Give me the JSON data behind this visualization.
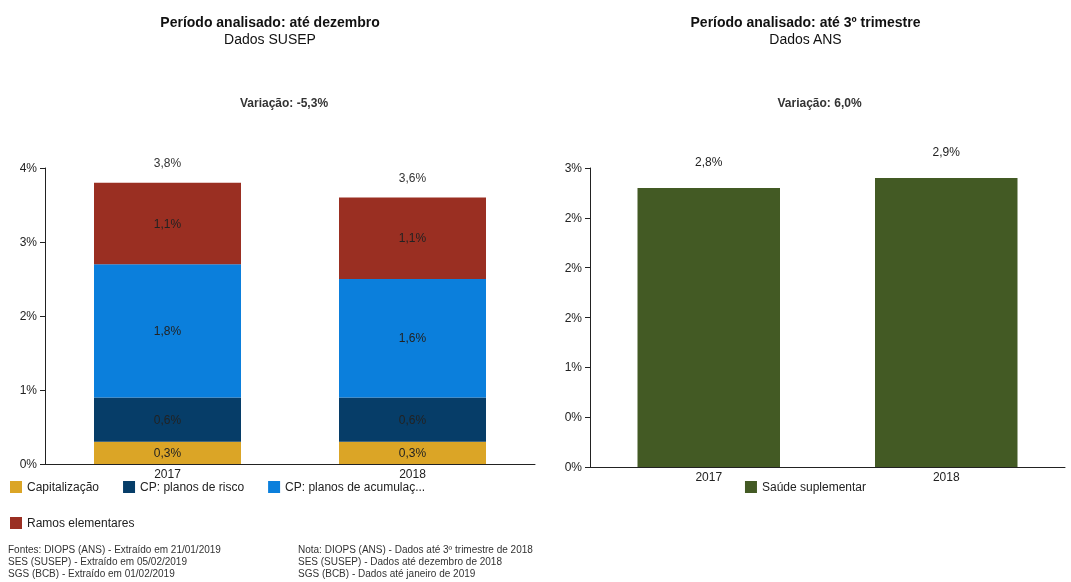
{
  "chart_data": [
    {
      "type": "bar",
      "title": "Período analisado: até dezembro",
      "subtitle": "Dados SUSEP",
      "categories": [
        "2017",
        "2018"
      ],
      "stacked": true,
      "legend": "bottom left",
      "series": [
        {
          "name": "Capitalização",
          "color": "#dba526",
          "values": [
            0.3,
            0.3
          ],
          "value_labels": [
            "0,3%",
            "0,3%"
          ]
        },
        {
          "name": "CP: planos de risco",
          "color": "#063d68",
          "values": [
            0.6,
            0.6
          ],
          "value_labels": [
            "0,6%",
            "0,6%"
          ]
        },
        {
          "name": "CP: planos de acumulaç...",
          "color": "#0b7fdc",
          "values": [
            1.8,
            1.6
          ],
          "value_labels": [
            "1,8%",
            "1,6%"
          ]
        },
        {
          "name": "Ramos elementares",
          "color": "#9a2f22",
          "values": [
            1.1,
            1.1
          ],
          "value_labels": [
            "1,1%",
            "1,1%"
          ]
        }
      ],
      "totals": [
        "3,8%",
        "3,6%"
      ],
      "ylim": [
        0,
        4
      ],
      "yticks": [
        {
          "value": 0,
          "label": "0%"
        },
        {
          "value": 1,
          "label": "1%"
        },
        {
          "value": 2,
          "label": "2%"
        },
        {
          "value": 3,
          "label": "3%"
        },
        {
          "value": 4,
          "label": "4%"
        }
      ],
      "annotations": [
        "Variação: -5,3%",
        "Fontes: DIOPS (ANS) - Extraído em 21/01/2019\nSES (SUSEP) - Extraído em 05/02/2019\nSGS (BCB) - Extraído em 01/02/2019",
        "Nota: DIOPS (ANS) - Dados até 3º trimestre de 2018\nSES (SUSEP) - Dados até dezembro de 2018\nSGS (BCB) - Dados até janeiro de 2019"
      ]
    },
    {
      "type": "bar",
      "title": "Período analisado: até 3º trimestre",
      "subtitle": "Dados ANS",
      "categories": [
        "2017",
        "2018"
      ],
      "legend": "bottom",
      "series": [
        {
          "name": "Saúde suplementar",
          "color": "#435a24",
          "values": [
            2.8,
            2.9
          ],
          "value_labels": [
            "2,8%",
            "2,9%"
          ]
        }
      ],
      "ylim": [
        0,
        3
      ],
      "yticks": [
        {
          "value": 0,
          "label": "0%"
        },
        {
          "value": 0.5,
          "label": "0%"
        },
        {
          "value": 1,
          "label": "1%"
        },
        {
          "value": 1.5,
          "label": "2%"
        },
        {
          "value": 2,
          "label": "2%"
        },
        {
          "value": 2.5,
          "label": "2%"
        },
        {
          "value": 3,
          "label": "3%"
        }
      ],
      "annotations": [
        "Variação: 6,0%"
      ]
    }
  ]
}
